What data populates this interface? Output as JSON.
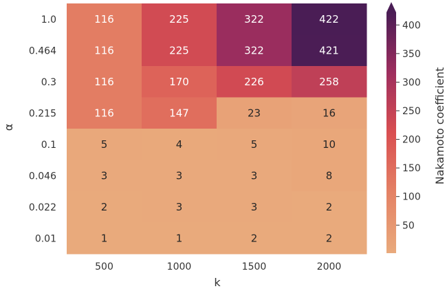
{
  "chart_data": {
    "type": "heatmap",
    "x": [
      "500",
      "1000",
      "1500",
      "2000"
    ],
    "y": [
      "1.0",
      "0.464",
      "0.3",
      "0.215",
      "0.1",
      "0.046",
      "0.022",
      "0.01"
    ],
    "values": [
      [
        116,
        225,
        322,
        422
      ],
      [
        116,
        225,
        322,
        421
      ],
      [
        116,
        170,
        226,
        258
      ],
      [
        116,
        147,
        23,
        16
      ],
      [
        5,
        4,
        5,
        10
      ],
      [
        3,
        3,
        3,
        8
      ],
      [
        2,
        3,
        3,
        2
      ],
      [
        1,
        1,
        2,
        2
      ]
    ],
    "xlabel": "k",
    "ylabel": "α",
    "colorbar_label": "Nakamoto coefficient",
    "colorbar_ticks": [
      50,
      100,
      150,
      200,
      250,
      300,
      350,
      400
    ],
    "vmin": 1,
    "vmax": 422,
    "colormap": "flare",
    "colors": {
      "low": "#e9aa7c",
      "mid": "#d94f51",
      "high": "#4a1d55",
      "text_light": "#ffffff",
      "text_dark": "#262626"
    }
  }
}
